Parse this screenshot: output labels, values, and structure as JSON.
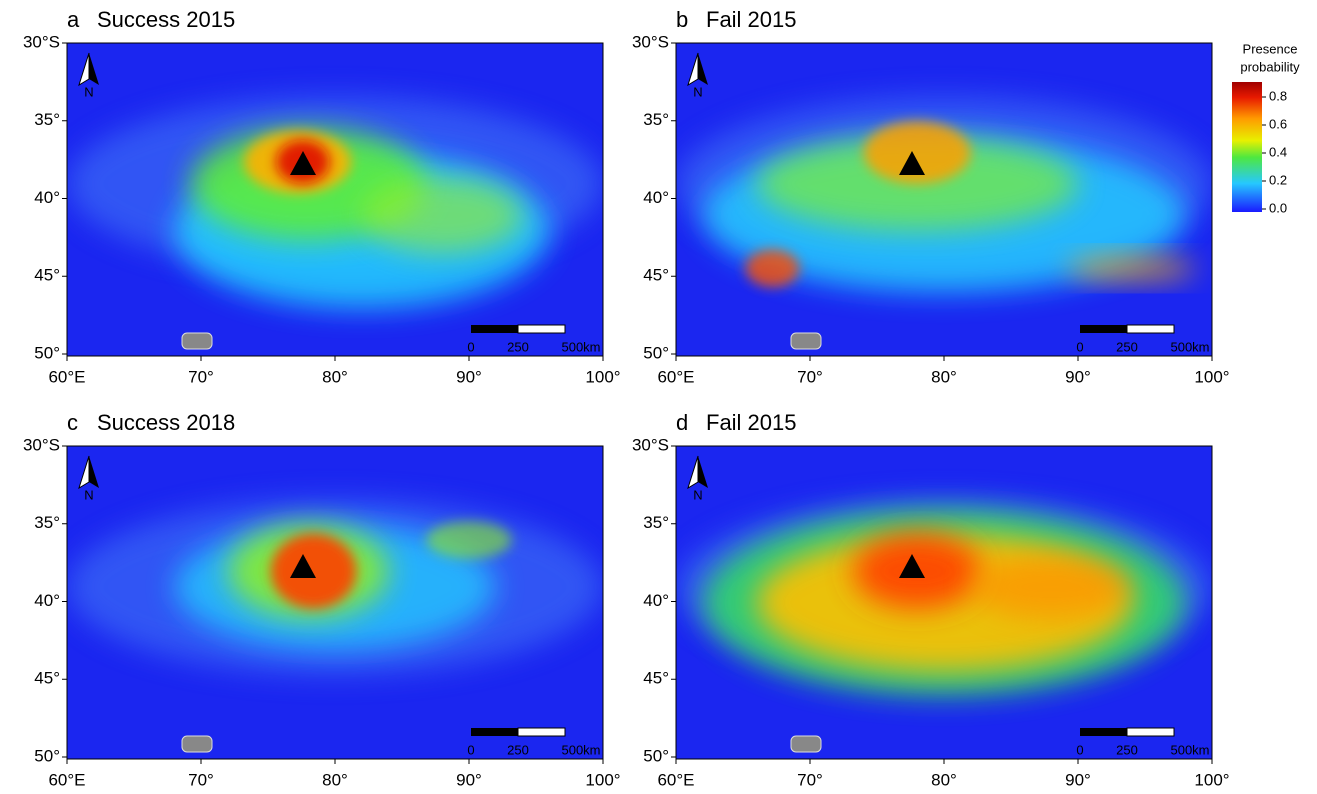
{
  "panels": [
    {
      "letter": "a",
      "title": "Success 2015"
    },
    {
      "letter": "b",
      "title": "Fail 2015"
    },
    {
      "letter": "c",
      "title": "Success 2018"
    },
    {
      "letter": "d",
      "title": "Fail 2015"
    }
  ],
  "x_ticks": [
    "60°E",
    "70°",
    "80°",
    "90°",
    "100°"
  ],
  "y_ticks": [
    "30°S",
    "35°",
    "40°",
    "45°",
    "50°"
  ],
  "north_label": "N",
  "scale_bar": [
    "0",
    "250",
    "500km"
  ],
  "colorbar": {
    "title": [
      "Presence",
      "probability"
    ],
    "ticks": [
      "0.8",
      "0.6",
      "0.4",
      "0.2",
      "0.0"
    ]
  }
}
